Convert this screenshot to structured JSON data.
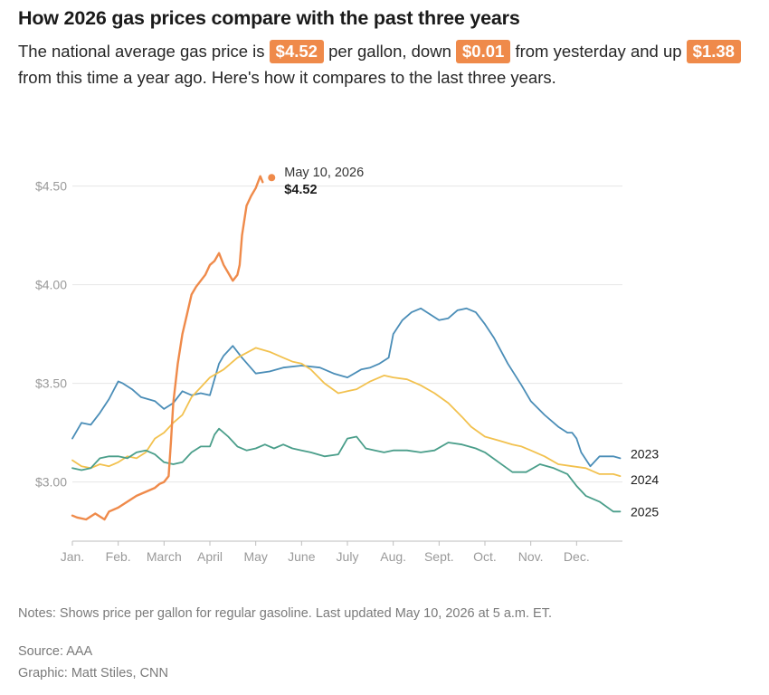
{
  "header": {
    "title": "How 2026 gas prices compare with the past three years",
    "subtitle": {
      "p1": "The national average gas price is ",
      "price": "$4.52",
      "p2": " per gallon, down ",
      "day_change": "$0.01",
      "p3": " from yesterday and up ",
      "year_change": "$1.38",
      "p4": " from this time a year ago. Here's how it compares to the last three years."
    },
    "accent_color": "#ef8a4a"
  },
  "chart_data": {
    "type": "line",
    "x_axis": {
      "unit": "month",
      "range": [
        1,
        13
      ],
      "tick_labels": [
        "Jan.",
        "Feb.",
        "March",
        "April",
        "May",
        "June",
        "July",
        "Aug.",
        "Sept.",
        "Oct.",
        "Nov.",
        "Dec."
      ]
    },
    "y_axis": {
      "range": [
        2.7,
        4.7
      ],
      "ticks": [
        3.0,
        3.5,
        4.0,
        4.5
      ],
      "tick_labels": [
        "$3.00",
        "$3.50",
        "$4.00",
        "$4.50"
      ]
    },
    "grid": "horizontal",
    "series": [
      {
        "name": "2023",
        "color": "#4a8db7",
        "x": [
          1.0,
          1.2,
          1.4,
          1.6,
          1.8,
          2.0,
          2.1,
          2.3,
          2.5,
          2.8,
          3.0,
          3.2,
          3.4,
          3.6,
          3.8,
          4.0,
          4.2,
          4.3,
          4.5,
          4.7,
          5.0,
          5.3,
          5.6,
          6.0,
          6.4,
          6.7,
          7.0,
          7.3,
          7.5,
          7.7,
          7.9,
          8.0,
          8.2,
          8.4,
          8.6,
          8.8,
          9.0,
          9.2,
          9.4,
          9.6,
          9.8,
          10.0,
          10.2,
          10.5,
          10.8,
          11.0,
          11.3,
          11.6,
          11.8,
          11.9,
          12.0,
          12.1,
          12.3,
          12.5,
          12.8,
          12.95
        ],
        "values": [
          3.22,
          3.3,
          3.29,
          3.35,
          3.42,
          3.51,
          3.5,
          3.47,
          3.43,
          3.41,
          3.37,
          3.4,
          3.46,
          3.44,
          3.45,
          3.44,
          3.6,
          3.64,
          3.69,
          3.63,
          3.55,
          3.56,
          3.58,
          3.59,
          3.58,
          3.55,
          3.53,
          3.57,
          3.58,
          3.6,
          3.63,
          3.75,
          3.82,
          3.86,
          3.88,
          3.85,
          3.82,
          3.83,
          3.87,
          3.88,
          3.86,
          3.8,
          3.73,
          3.6,
          3.49,
          3.41,
          3.34,
          3.28,
          3.25,
          3.25,
          3.22,
          3.15,
          3.08,
          3.13,
          3.13,
          3.12
        ]
      },
      {
        "name": "2024",
        "color": "#f2c14e",
        "x": [
          1.0,
          1.2,
          1.4,
          1.6,
          1.8,
          2.0,
          2.2,
          2.4,
          2.6,
          2.8,
          3.0,
          3.2,
          3.4,
          3.6,
          3.8,
          4.0,
          4.3,
          4.6,
          5.0,
          5.3,
          5.6,
          5.8,
          6.0,
          6.2,
          6.5,
          6.8,
          7.0,
          7.2,
          7.5,
          7.8,
          8.0,
          8.3,
          8.6,
          8.9,
          9.2,
          9.5,
          9.7,
          10.0,
          10.3,
          10.6,
          10.8,
          11.0,
          11.3,
          11.6,
          11.9,
          12.2,
          12.5,
          12.8,
          12.95
        ],
        "values": [
          3.11,
          3.08,
          3.07,
          3.09,
          3.08,
          3.1,
          3.13,
          3.12,
          3.15,
          3.22,
          3.25,
          3.3,
          3.34,
          3.43,
          3.48,
          3.53,
          3.57,
          3.63,
          3.68,
          3.66,
          3.63,
          3.61,
          3.6,
          3.57,
          3.5,
          3.45,
          3.46,
          3.47,
          3.51,
          3.54,
          3.53,
          3.52,
          3.49,
          3.45,
          3.4,
          3.33,
          3.28,
          3.23,
          3.21,
          3.19,
          3.18,
          3.16,
          3.13,
          3.09,
          3.08,
          3.07,
          3.04,
          3.04,
          3.03
        ]
      },
      {
        "name": "2025",
        "color": "#4a9e8a",
        "x": [
          1.0,
          1.2,
          1.4,
          1.6,
          1.8,
          2.0,
          2.2,
          2.4,
          2.6,
          2.8,
          3.0,
          3.2,
          3.4,
          3.6,
          3.8,
          4.0,
          4.1,
          4.2,
          4.4,
          4.6,
          4.8,
          5.0,
          5.2,
          5.4,
          5.6,
          5.8,
          6.0,
          6.2,
          6.5,
          6.8,
          7.0,
          7.2,
          7.4,
          7.6,
          7.8,
          8.0,
          8.3,
          8.6,
          8.9,
          9.2,
          9.5,
          9.8,
          10.0,
          10.3,
          10.6,
          10.9,
          11.2,
          11.5,
          11.8,
          12.0,
          12.2,
          12.5,
          12.8,
          12.95
        ],
        "values": [
          3.07,
          3.06,
          3.07,
          3.12,
          3.13,
          3.13,
          3.12,
          3.15,
          3.16,
          3.14,
          3.1,
          3.09,
          3.1,
          3.15,
          3.18,
          3.18,
          3.24,
          3.27,
          3.23,
          3.18,
          3.16,
          3.17,
          3.19,
          3.17,
          3.19,
          3.17,
          3.16,
          3.15,
          3.13,
          3.14,
          3.22,
          3.23,
          3.17,
          3.16,
          3.15,
          3.16,
          3.16,
          3.15,
          3.16,
          3.2,
          3.19,
          3.17,
          3.15,
          3.1,
          3.05,
          3.05,
          3.09,
          3.07,
          3.04,
          2.98,
          2.93,
          2.9,
          2.85,
          2.85
        ]
      },
      {
        "name": "2026",
        "color": "#ef8a4a",
        "x": [
          1.0,
          1.1,
          1.3,
          1.5,
          1.7,
          1.8,
          2.0,
          2.2,
          2.4,
          2.6,
          2.8,
          2.9,
          3.0,
          3.1,
          3.15,
          3.2,
          3.25,
          3.3,
          3.4,
          3.5,
          3.6,
          3.7,
          3.9,
          4.0,
          4.1,
          4.2,
          4.3,
          4.4,
          4.5,
          4.6,
          4.65,
          4.7,
          4.8,
          4.9,
          5.0,
          5.05,
          5.1,
          5.15
        ],
        "values": [
          2.83,
          2.82,
          2.81,
          2.84,
          2.81,
          2.85,
          2.87,
          2.9,
          2.93,
          2.95,
          2.97,
          2.99,
          3.0,
          3.03,
          3.2,
          3.4,
          3.5,
          3.6,
          3.75,
          3.85,
          3.95,
          3.99,
          4.05,
          4.1,
          4.12,
          4.16,
          4.1,
          4.06,
          4.02,
          4.05,
          4.1,
          4.25,
          4.4,
          4.45,
          4.49,
          4.52,
          4.55,
          4.52
        ]
      }
    ],
    "annotation": {
      "date": "May 10, 2026",
      "value": "$4.52",
      "x": 5.15,
      "y": 4.52
    },
    "legend": "end-of-line labels"
  },
  "footer": {
    "notes": "Notes: Shows price per gallon for regular gasoline. Last updated May 10, 2026 at 5 a.m. ET.",
    "source": "Source: AAA",
    "graphic": "Graphic: Matt Stiles, CNN"
  }
}
